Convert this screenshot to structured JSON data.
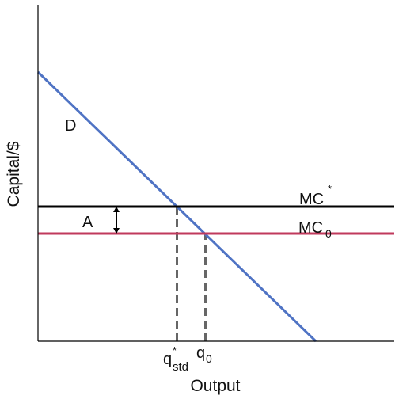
{
  "chart_data": {
    "type": "line",
    "title": "",
    "xlabel": "Output",
    "ylabel": "Capital/$",
    "xlim": [
      0,
      10
    ],
    "ylim": [
      0,
      10
    ],
    "axes": {
      "ticks": false,
      "grid": false
    },
    "series": [
      {
        "name": "D",
        "points": [
          [
            0,
            8
          ],
          [
            7.8,
            0
          ]
        ],
        "color": "#4f73c4"
      },
      {
        "name": "MC*",
        "points": [
          [
            0,
            4
          ],
          [
            10,
            4
          ]
        ],
        "color": "#000000"
      },
      {
        "name": "MC0",
        "points": [
          [
            0,
            3.2
          ],
          [
            10,
            3.2
          ]
        ],
        "color": "#c03a5c"
      }
    ],
    "reference_lines": [
      {
        "label": "q*std",
        "x": 3.9,
        "from_y": 0,
        "to_y": 4,
        "color": "#666666",
        "style": "dashed"
      },
      {
        "label": "q0",
        "x": 4.7,
        "from_y": 0,
        "to_y": 3.2,
        "color": "#666666",
        "style": "dashed"
      }
    ],
    "annotations": [
      {
        "label": "A",
        "type": "double-arrow",
        "x": 2.2,
        "from_y": 3.2,
        "to_y": 4
      }
    ]
  },
  "labels": {
    "demand": "D",
    "area": "A",
    "mc_star_main": "MC",
    "mc_star_sup": "*",
    "mc0_main": "MC",
    "mc0_sub": "0",
    "qstd_main": "q",
    "qstd_sup": "*",
    "qstd_sub": "std",
    "q0_main": "q",
    "q0_sub": "0",
    "xlabel": "Output",
    "ylabel": "Capital/$"
  }
}
